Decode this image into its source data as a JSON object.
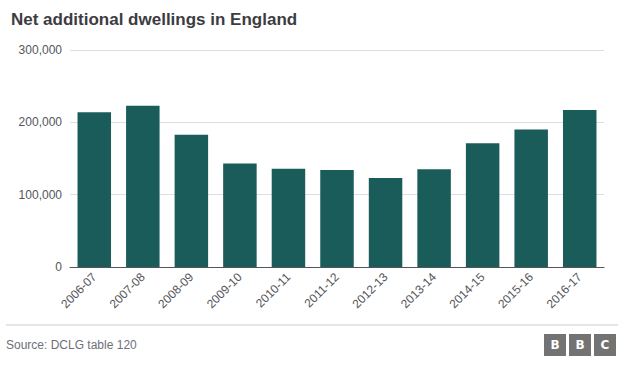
{
  "chart_data": {
    "type": "bar",
    "title": "Net additional dwellings in England",
    "categories": [
      "2006-07",
      "2007-08",
      "2008-09",
      "2009-10",
      "2010-11",
      "2011-12",
      "2012-13",
      "2013-14",
      "2014-15",
      "2015-16",
      "2016-17"
    ],
    "values": [
      214000,
      223000,
      183000,
      143000,
      136000,
      134000,
      123000,
      135000,
      171000,
      190000,
      217000
    ],
    "color": "#1a5c5a",
    "ylim": [
      0,
      300000
    ],
    "yticks": [
      0,
      {
        "value": 100000,
        "label": "100,000"
      },
      {
        "value": 200000,
        "label": "200,000"
      },
      {
        "value": 300000,
        "label": "300,000"
      }
    ],
    "grid": true,
    "annotations": [
      "Source: DCLG table 120",
      "B",
      "B",
      "C"
    ]
  }
}
